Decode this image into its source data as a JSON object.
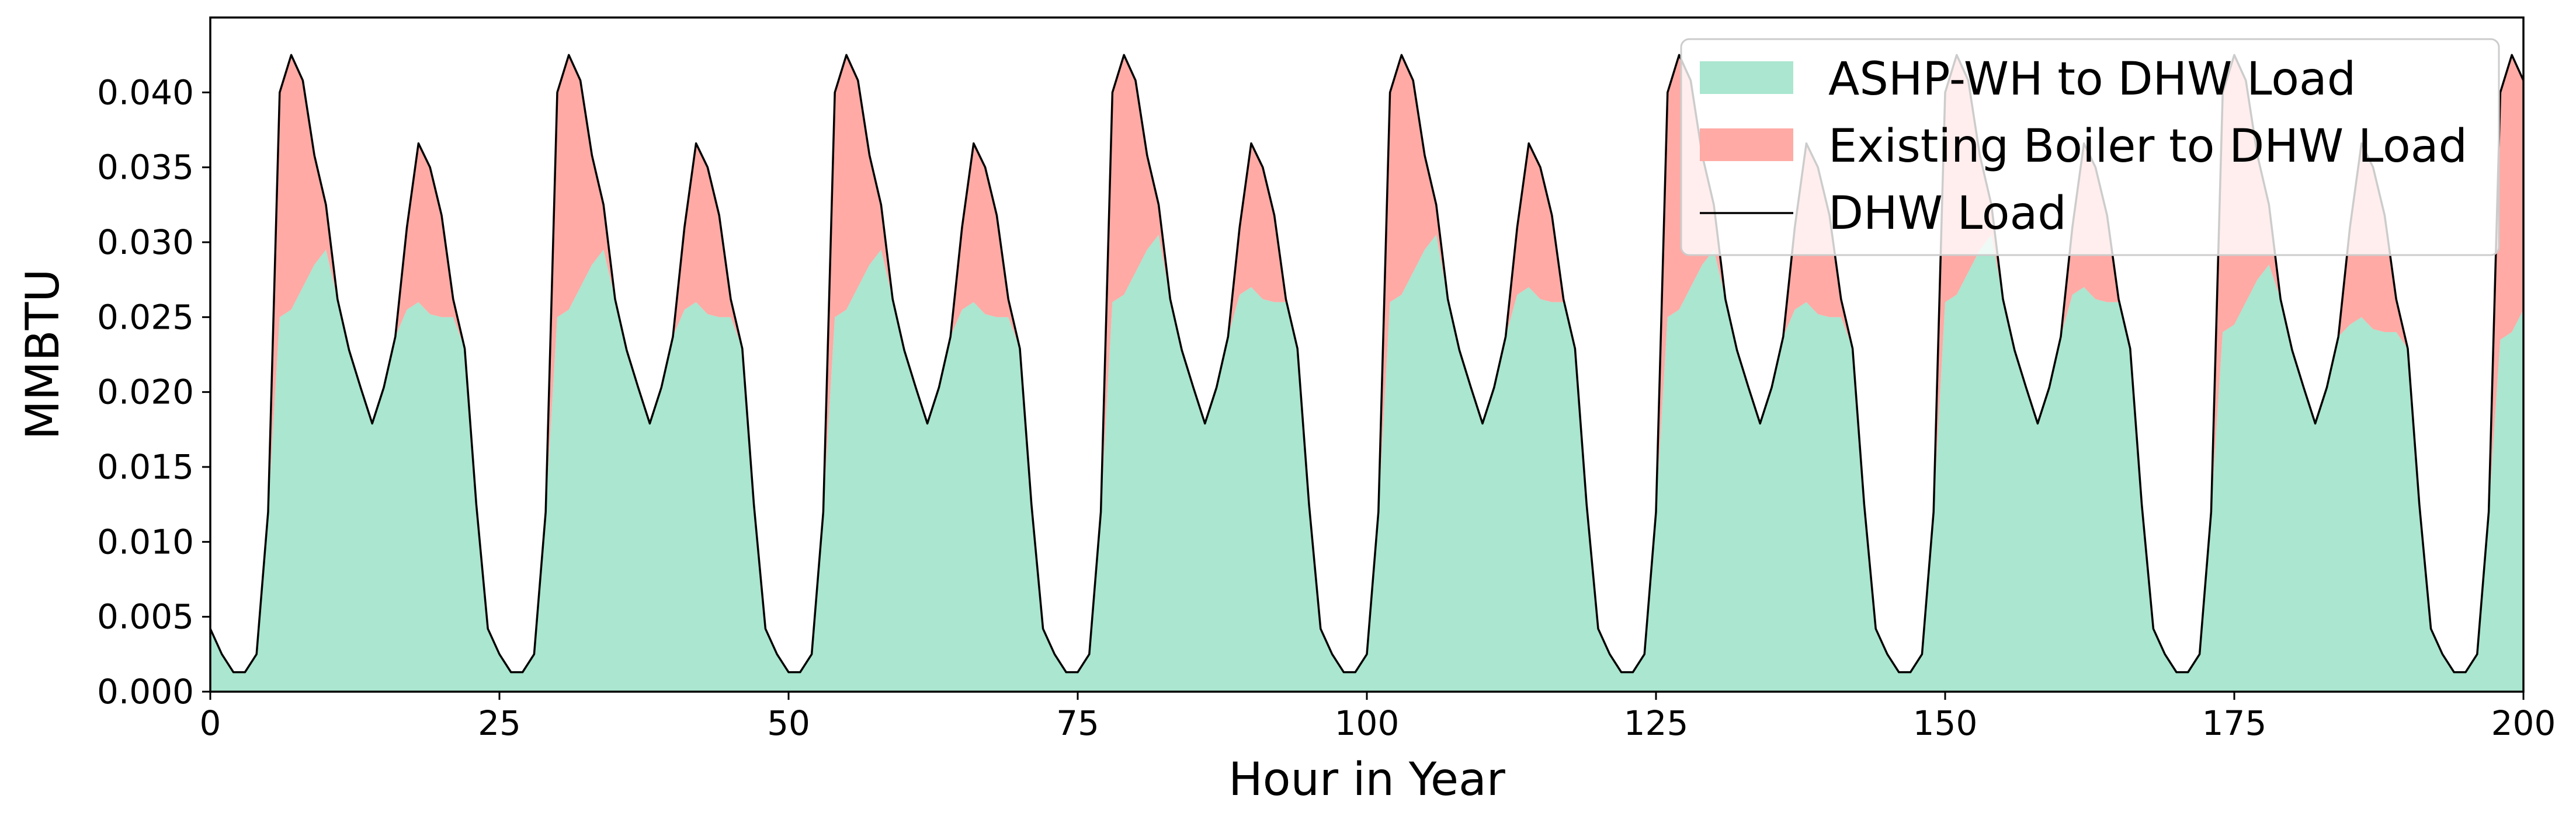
{
  "chart_data": {
    "type": "area",
    "xlabel": "Hour in Year",
    "ylabel": "MMBTU",
    "xlim": [
      0,
      200
    ],
    "ylim": [
      0,
      0.045
    ],
    "x_ticks": [
      "0",
      "25",
      "50",
      "75",
      "100",
      "125",
      "150",
      "175",
      "200"
    ],
    "y_ticks": [
      "0.000",
      "0.005",
      "0.010",
      "0.015",
      "0.020",
      "0.025",
      "0.030",
      "0.035",
      "0.040"
    ],
    "grid": false,
    "legend_position": "top-right",
    "legend": [
      {
        "label": "ASHP-WH to DHW Load",
        "color": "#aae6d0",
        "kind": "patch"
      },
      {
        "label": "Existing Boiler to DHW Load",
        "color": "#ffaaa5",
        "kind": "patch"
      },
      {
        "label": "DHW Load",
        "color": "#000000",
        "kind": "line"
      }
    ],
    "daily_profile": {
      "hours": [
        0,
        1,
        2,
        3,
        4,
        5,
        6,
        7,
        8,
        9,
        10,
        11,
        12,
        13,
        14,
        15,
        16,
        17,
        18,
        19,
        20,
        21,
        22,
        23
      ],
      "dhw_load": [
        0.0042,
        0.0025,
        0.0013,
        0.0013,
        0.0025,
        0.012,
        0.04,
        0.0425,
        0.0408,
        0.0358,
        0.0325,
        0.0262,
        0.0228,
        0.0203,
        0.0179,
        0.0203,
        0.0237,
        0.031,
        0.0366,
        0.035,
        0.0318,
        0.0262,
        0.0229,
        0.0125
      ],
      "ashp_typical": [
        0.0042,
        0.0025,
        0.0013,
        0.0013,
        0.0025,
        0.012,
        0.025,
        0.0255,
        0.027,
        0.0285,
        0.0295,
        0.0262,
        0.0228,
        0.0203,
        0.0179,
        0.0203,
        0.0237,
        0.0255,
        0.026,
        0.0252,
        0.025,
        0.025,
        0.0229,
        0.0125
      ]
    },
    "days": 9,
    "series": [
      {
        "name": "ASHP-WH to DHW Load",
        "day_offsets": [
          0.0,
          0.0,
          0.0,
          0.001,
          0.001,
          0.0,
          0.001,
          -0.001,
          -0.0015
        ]
      },
      {
        "name": "Existing Boiler to DHW Load"
      },
      {
        "name": "DHW Load"
      }
    ]
  }
}
